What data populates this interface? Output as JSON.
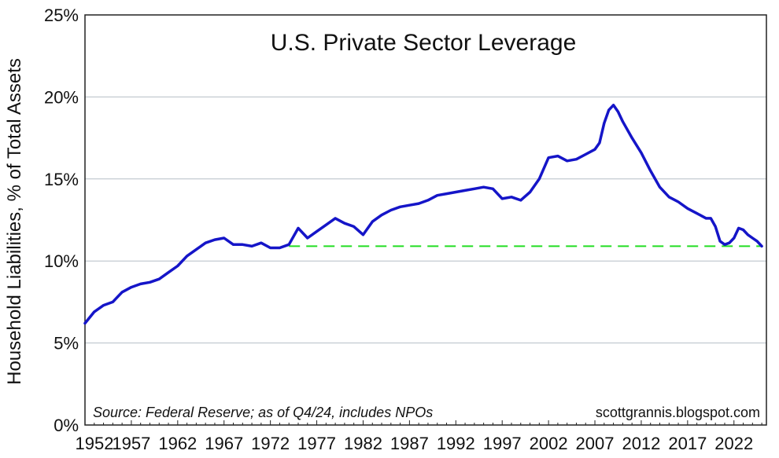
{
  "chart_data": {
    "type": "line",
    "title": "U.S. Private Sector Leverage",
    "ylabel": "Household Liabilities, % of Total Assets",
    "xlabel": "",
    "xlim": [
      1952,
      2025.5
    ],
    "ylim": [
      0,
      25
    ],
    "grid": true,
    "yticks": [
      0,
      5,
      10,
      15,
      20,
      25
    ],
    "ytick_labels": [
      "0%",
      "5%",
      "10%",
      "15%",
      "20%",
      "25%"
    ],
    "xticks": [
      1952,
      1957,
      1962,
      1967,
      1972,
      1977,
      1982,
      1987,
      1992,
      1997,
      2002,
      2007,
      2012,
      2017,
      2022
    ],
    "xtick_labels": [
      "1952",
      "1957",
      "1962",
      "1967",
      "1972",
      "1977",
      "1982",
      "1987",
      "1992",
      "1997",
      "2002",
      "2007",
      "2012",
      "2017",
      "2022"
    ],
    "source_note": "Source: Federal Reserve; as of Q4/24, includes NPOs",
    "watermark": "scottgrannis.blogspot.com",
    "series": [
      {
        "name": "Household Liabilities % of Total Assets",
        "color": "#1515c8",
        "x": [
          1952,
          1953,
          1954,
          1955,
          1956,
          1957,
          1958,
          1959,
          1960,
          1961,
          1962,
          1963,
          1964,
          1965,
          1966,
          1967,
          1968,
          1969,
          1970,
          1971,
          1972,
          1973,
          1974,
          1975,
          1976,
          1977,
          1978,
          1979,
          1980,
          1981,
          1982,
          1983,
          1984,
          1985,
          1986,
          1987,
          1988,
          1989,
          1990,
          1991,
          1992,
          1993,
          1994,
          1995,
          1996,
          1997,
          1998,
          1999,
          2000,
          2001,
          2002,
          2003,
          2004,
          2005,
          2006,
          2007,
          2007.5,
          2008,
          2008.5,
          2009,
          2009.5,
          2010,
          2011,
          2012,
          2013,
          2014,
          2015,
          2016,
          2017,
          2018,
          2019,
          2019.5,
          2020,
          2020.5,
          2021,
          2021.5,
          2022,
          2022.5,
          2023,
          2023.5,
          2024,
          2024.5,
          2025
        ],
        "values": [
          6.2,
          6.9,
          7.3,
          7.5,
          8.1,
          8.4,
          8.6,
          8.7,
          8.9,
          9.3,
          9.7,
          10.3,
          10.7,
          11.1,
          11.3,
          11.4,
          11.0,
          11.0,
          10.9,
          11.1,
          10.8,
          10.8,
          11.0,
          12.0,
          11.4,
          11.8,
          12.2,
          12.6,
          12.3,
          12.1,
          11.6,
          12.4,
          12.8,
          13.1,
          13.3,
          13.4,
          13.5,
          13.7,
          14.0,
          14.1,
          14.2,
          14.3,
          14.4,
          14.5,
          14.4,
          13.8,
          13.9,
          13.7,
          14.2,
          15.0,
          16.3,
          16.4,
          16.1,
          16.2,
          16.5,
          16.8,
          17.2,
          18.4,
          19.2,
          19.5,
          19.1,
          18.5,
          17.5,
          16.6,
          15.5,
          14.5,
          13.9,
          13.6,
          13.2,
          12.9,
          12.6,
          12.6,
          12.1,
          11.2,
          11.0,
          11.1,
          11.4,
          12.0,
          11.9,
          11.6,
          11.4,
          11.2,
          10.9
        ]
      }
    ],
    "reference_line": {
      "value": 10.9,
      "x_start": 1974,
      "x_end": 2025,
      "style": "dashed",
      "color": "#22dd22"
    }
  }
}
